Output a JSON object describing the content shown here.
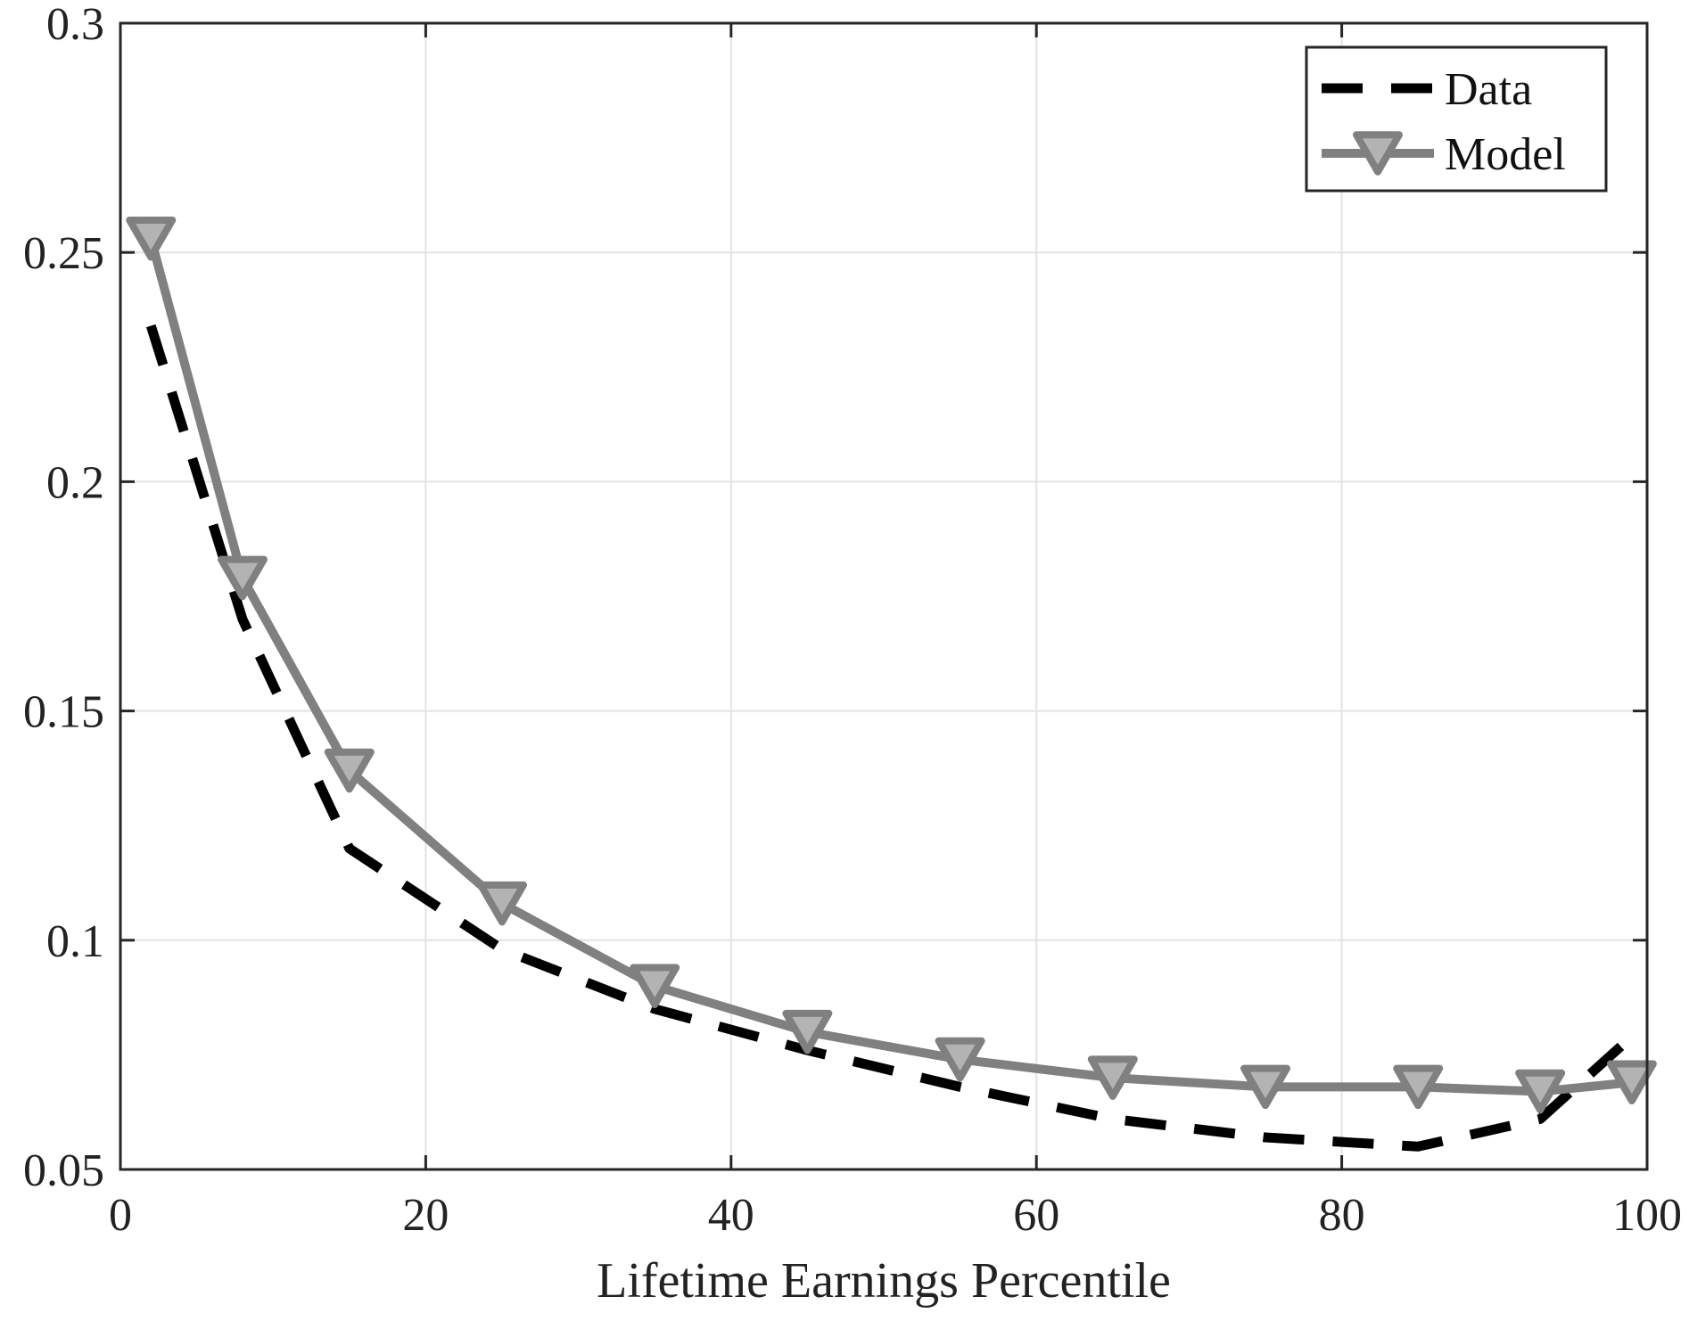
{
  "chart_data": {
    "type": "line",
    "title": "",
    "xlabel": "Lifetime Earnings Percentile",
    "ylabel": "",
    "xlim": [
      0,
      100
    ],
    "ylim": [
      0.05,
      0.3
    ],
    "xticks": [
      0,
      20,
      40,
      60,
      80,
      100
    ],
    "yticks": [
      0.05,
      0.1,
      0.15,
      0.2,
      0.25,
      0.3
    ],
    "xtick_labels": [
      "0",
      "20",
      "40",
      "60",
      "80",
      "100"
    ],
    "ytick_labels": [
      "0.05",
      "0.1",
      "0.15",
      "0.2",
      "0.25",
      "0.3"
    ],
    "grid": true,
    "legend_position": "top-right",
    "series": [
      {
        "name": "Data",
        "style": "dashed",
        "marker": "none",
        "color": "#000000",
        "x": [
          2,
          8,
          15,
          25,
          35,
          45,
          55,
          65,
          75,
          85,
          93,
          99
        ],
        "y": [
          0.234,
          0.17,
          0.12,
          0.098,
          0.085,
          0.076,
          0.068,
          0.061,
          0.057,
          0.055,
          0.061,
          0.079
        ]
      },
      {
        "name": "Model",
        "style": "solid",
        "marker": "triangle-down",
        "color": "#808080",
        "marker_fill": "#b3b3b3",
        "x": [
          2,
          8,
          15,
          25,
          35,
          45,
          55,
          65,
          75,
          85,
          93,
          99
        ],
        "y": [
          0.253,
          0.179,
          0.137,
          0.108,
          0.09,
          0.08,
          0.074,
          0.07,
          0.068,
          0.068,
          0.067,
          0.069
        ]
      }
    ]
  }
}
